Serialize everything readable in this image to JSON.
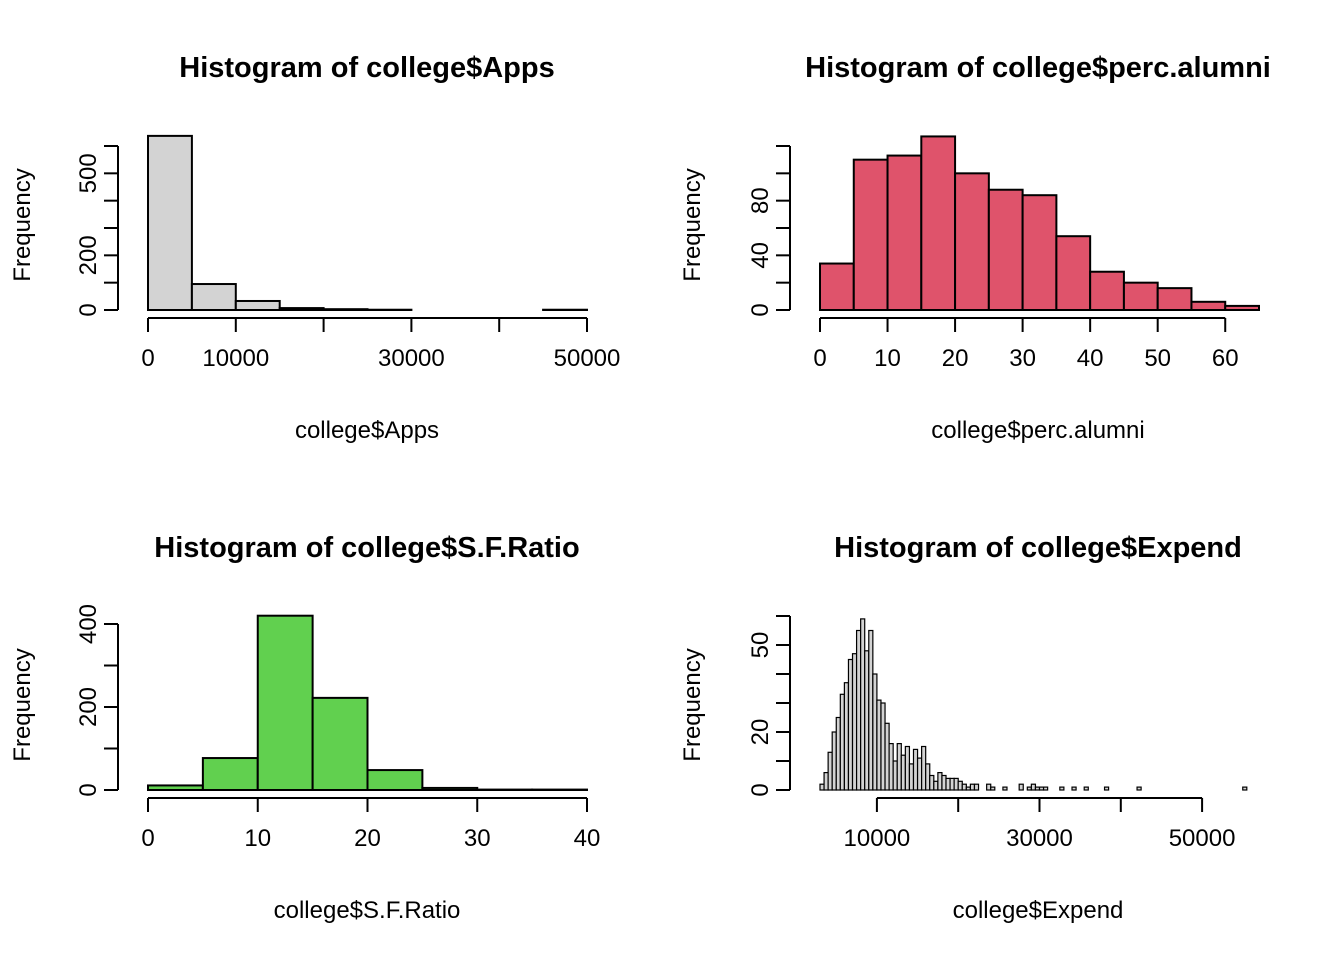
{
  "chart_data": [
    {
      "type": "bar",
      "title": "Histogram of college$Apps",
      "xlabel": "college$Apps",
      "ylabel": "Frequency",
      "fill": "#d3d3d3",
      "xlim": [
        0,
        50000
      ],
      "ylim": [
        0,
        600
      ],
      "xticks": [
        0,
        10000,
        20000,
        30000,
        40000,
        50000
      ],
      "xtick_labels": [
        "0",
        "10000",
        "",
        "30000",
        "",
        "50000"
      ],
      "yticks": [
        0,
        100,
        200,
        300,
        400,
        500,
        600
      ],
      "ytick_labels": [
        "0",
        "",
        "200",
        "",
        "",
        "500",
        ""
      ],
      "bins": [
        {
          "x0": 0,
          "x1": 5000,
          "count": 637
        },
        {
          "x0": 5000,
          "x1": 10000,
          "count": 95
        },
        {
          "x0": 10000,
          "x1": 15000,
          "count": 33
        },
        {
          "x0": 15000,
          "x1": 20000,
          "count": 7
        },
        {
          "x0": 20000,
          "x1": 25000,
          "count": 3
        },
        {
          "x0": 25000,
          "x1": 30000,
          "count": 1
        },
        {
          "x0": 30000,
          "x1": 35000,
          "count": 0
        },
        {
          "x0": 35000,
          "x1": 40000,
          "count": 0
        },
        {
          "x0": 40000,
          "x1": 45000,
          "count": 0
        },
        {
          "x0": 45000,
          "x1": 50000,
          "count": 1
        }
      ]
    },
    {
      "type": "bar",
      "title": "Histogram of college$perc.alumni",
      "xlabel": "college$perc.alumni",
      "ylabel": "Frequency",
      "fill": "#df536b",
      "xlim": [
        0,
        65
      ],
      "ylim": [
        0,
        120
      ],
      "xticks": [
        0,
        10,
        20,
        30,
        40,
        50,
        60
      ],
      "xtick_labels": [
        "0",
        "10",
        "20",
        "30",
        "40",
        "50",
        "60"
      ],
      "yticks": [
        0,
        20,
        40,
        60,
        80,
        100,
        120
      ],
      "ytick_labels": [
        "0",
        "",
        "40",
        "",
        "80",
        "",
        ""
      ],
      "bins": [
        {
          "x0": 0,
          "x1": 5,
          "count": 34
        },
        {
          "x0": 5,
          "x1": 10,
          "count": 110
        },
        {
          "x0": 10,
          "x1": 15,
          "count": 113
        },
        {
          "x0": 15,
          "x1": 20,
          "count": 127
        },
        {
          "x0": 20,
          "x1": 25,
          "count": 100
        },
        {
          "x0": 25,
          "x1": 30,
          "count": 88
        },
        {
          "x0": 30,
          "x1": 35,
          "count": 84
        },
        {
          "x0": 35,
          "x1": 40,
          "count": 54
        },
        {
          "x0": 40,
          "x1": 45,
          "count": 28
        },
        {
          "x0": 45,
          "x1": 50,
          "count": 20
        },
        {
          "x0": 50,
          "x1": 55,
          "count": 16
        },
        {
          "x0": 55,
          "x1": 60,
          "count": 6
        },
        {
          "x0": 60,
          "x1": 65,
          "count": 3
        }
      ]
    },
    {
      "type": "bar",
      "title": "Histogram of college$S.F.Ratio",
      "xlabel": "college$S.F.Ratio",
      "ylabel": "Frequency",
      "fill": "#61d04f",
      "xlim": [
        0,
        40
      ],
      "ylim": [
        0,
        400
      ],
      "xticks": [
        0,
        10,
        20,
        30,
        40
      ],
      "xtick_labels": [
        "0",
        "10",
        "20",
        "30",
        "40"
      ],
      "yticks": [
        0,
        100,
        200,
        300,
        400
      ],
      "ytick_labels": [
        "0",
        "",
        "200",
        "",
        "400"
      ],
      "bins": [
        {
          "x0": 0,
          "x1": 5,
          "count": 11
        },
        {
          "x0": 5,
          "x1": 10,
          "count": 77
        },
        {
          "x0": 10,
          "x1": 15,
          "count": 420
        },
        {
          "x0": 15,
          "x1": 20,
          "count": 222
        },
        {
          "x0": 20,
          "x1": 25,
          "count": 48
        },
        {
          "x0": 25,
          "x1": 30,
          "count": 5
        },
        {
          "x0": 30,
          "x1": 35,
          "count": 1
        },
        {
          "x0": 35,
          "x1": 40,
          "count": 1
        }
      ]
    },
    {
      "type": "bar",
      "title": "Histogram of college$Expend",
      "xlabel": "college$Expend",
      "ylabel": "Frequency",
      "fill": "#d3d3d3",
      "xlim": [
        3000,
        57000
      ],
      "ylim": [
        0,
        60
      ],
      "xticks": [
        10000,
        20000,
        30000,
        40000,
        50000
      ],
      "xtick_labels": [
        "10000",
        "",
        "30000",
        "",
        "50000"
      ],
      "yticks": [
        0,
        10,
        20,
        30,
        40,
        50,
        60
      ],
      "ytick_labels": [
        "0",
        "",
        "20",
        "",
        "",
        "50",
        ""
      ],
      "bin_start": 3000,
      "bin_width": 500,
      "counts": [
        2,
        6,
        13,
        20,
        25,
        33,
        37,
        45,
        47,
        55,
        59,
        48,
        55,
        40,
        31,
        30,
        23,
        16,
        10,
        16,
        12,
        15,
        9,
        14,
        11,
        15,
        9,
        5,
        3,
        6,
        5,
        4,
        4,
        4,
        3,
        2,
        1,
        2,
        2,
        0,
        0,
        2,
        1,
        0,
        0,
        1,
        0,
        0,
        0,
        2,
        0,
        1,
        2,
        1,
        1,
        1,
        0,
        0,
        0,
        1,
        0,
        0,
        1,
        0,
        0,
        1,
        0,
        0,
        0,
        0,
        1,
        0,
        0,
        0,
        0,
        0,
        0,
        0,
        1,
        0,
        0,
        0,
        0,
        0,
        0,
        0,
        0,
        0,
        0,
        0,
        0,
        0,
        0,
        0,
        0,
        0,
        0,
        0,
        0,
        0,
        0,
        0,
        0,
        0,
        1
      ]
    }
  ]
}
